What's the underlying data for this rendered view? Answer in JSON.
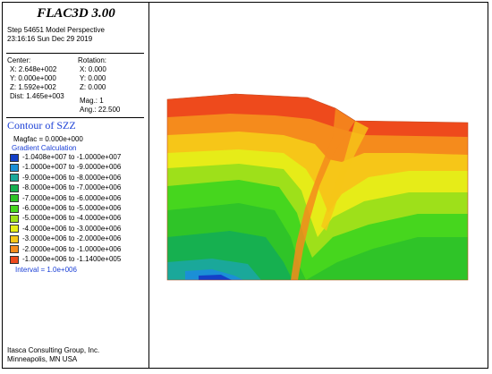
{
  "panel": {
    "title": "FLAC3D 3.00",
    "step_line": "Step 54651  Model Perspective",
    "date_line": "23:16:16 Sun Dec 29 2019",
    "center_label": "Center:",
    "rotation_label": "Rotation:",
    "cx": "X: 2.648e+002",
    "cy": "Y: 0.000e+000",
    "cz": "Z: 1.592e+002",
    "rx": "X:   0.000",
    "ry": "Y:   0.000",
    "rz": "Z:   0.000",
    "dist": "Dist: 1.465e+003",
    "mag": "Mag.:       1",
    "ang": "Ang.:  22.500",
    "contour_title": "Contour of SZZ",
    "magfac": "Magfac =  0.000e+000",
    "gradient": "Gradient Calculation",
    "interval": "Interval =  1.0e+006",
    "footer1": "Itasca Consulting Group, Inc.",
    "footer2": "Minneapolis, MN  USA"
  },
  "legend": [
    {
      "label": "-1.0408e+007 to -1.0000e+007",
      "color": "#1440c8"
    },
    {
      "label": "-1.0000e+007 to -9.0000e+006",
      "color": "#1b8fd6"
    },
    {
      "label": "-9.0000e+006 to -8.0000e+006",
      "color": "#1aa89a"
    },
    {
      "label": "-8.0000e+006 to -7.0000e+006",
      "color": "#16b050"
    },
    {
      "label": "-7.0000e+006 to -6.0000e+006",
      "color": "#2fc428"
    },
    {
      "label": "-6.0000e+006 to -5.0000e+006",
      "color": "#46d61e"
    },
    {
      "label": "-5.0000e+006 to -4.0000e+006",
      "color": "#9ee01a"
    },
    {
      "label": "-4.0000e+006 to -3.0000e+006",
      "color": "#e6ec18"
    },
    {
      "label": "-3.0000e+006 to -2.0000e+006",
      "color": "#f6c618"
    },
    {
      "label": "-2.0000e+006 to -1.0000e+006",
      "color": "#f58b1c"
    },
    {
      "label": "-1.0000e+006 to -1.1400e+005",
      "color": "#ee4a1c"
    }
  ]
}
